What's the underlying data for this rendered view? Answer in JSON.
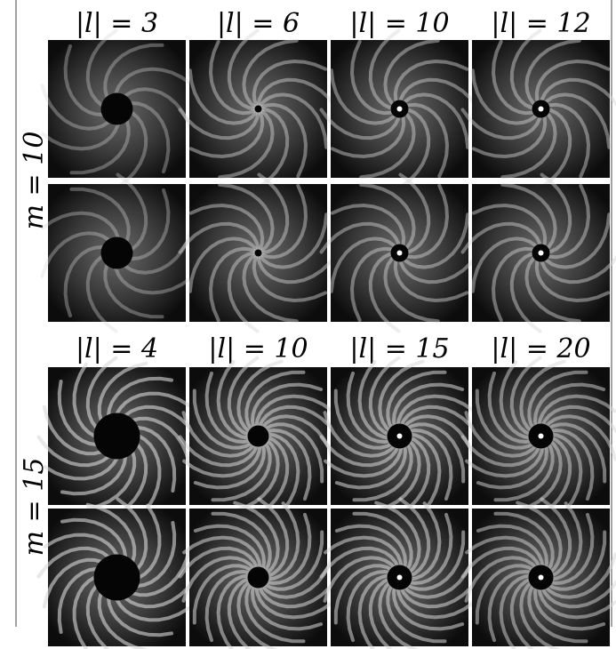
{
  "panels": [
    {
      "row_label": "m = 10",
      "column_labels": [
        "|l| = 3",
        "|l| = 6",
        "|l| = 10",
        "|l| = 12"
      ]
    },
    {
      "row_label": "m = 15",
      "column_labels": [
        "|l| = 4",
        "|l| = 10",
        "|l| = 15",
        "|l| = 20"
      ]
    }
  ]
}
